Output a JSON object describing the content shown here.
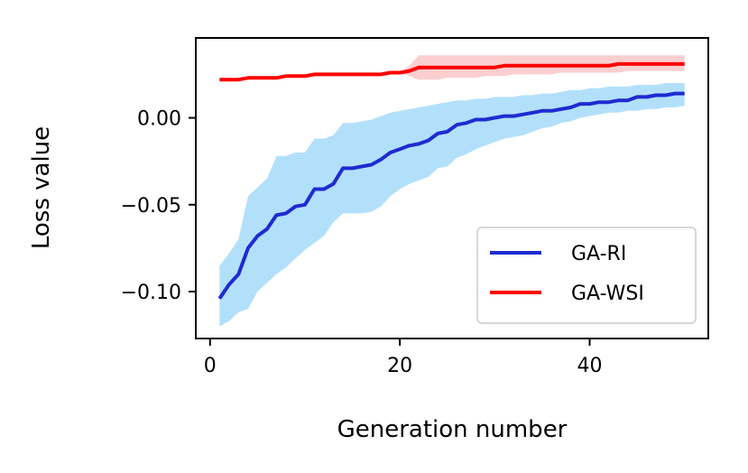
{
  "chart_data": {
    "type": "line",
    "title": "",
    "xlabel": "Generation number",
    "ylabel": "Loss value",
    "xlim": [
      -1.5,
      52.5
    ],
    "ylim": [
      -0.127,
      0.046
    ],
    "xticks": [
      0,
      20,
      40
    ],
    "xtick_labels": [
      "0",
      "20",
      "40"
    ],
    "yticks": [
      -0.1,
      -0.05,
      0.0
    ],
    "ytick_labels": [
      "−0.10",
      "−0.05",
      "0.00"
    ],
    "grid": false,
    "legend_position": "lower-right",
    "x": [
      1,
      2,
      3,
      4,
      5,
      6,
      7,
      8,
      9,
      10,
      11,
      12,
      13,
      14,
      15,
      16,
      17,
      18,
      19,
      20,
      21,
      22,
      23,
      24,
      25,
      26,
      27,
      28,
      29,
      30,
      31,
      32,
      33,
      34,
      35,
      36,
      37,
      38,
      39,
      40,
      41,
      42,
      43,
      44,
      45,
      46,
      47,
      48,
      49,
      50
    ],
    "series": [
      {
        "name": "GA-RI",
        "color": "#1f2bd0",
        "band_color": "#b2e0fb",
        "values": [
          -0.104,
          -0.096,
          -0.09,
          -0.075,
          -0.068,
          -0.064,
          -0.056,
          -0.055,
          -0.051,
          -0.05,
          -0.041,
          -0.041,
          -0.038,
          -0.029,
          -0.029,
          -0.028,
          -0.027,
          -0.024,
          -0.02,
          -0.018,
          -0.016,
          -0.015,
          -0.013,
          -0.009,
          -0.008,
          -0.004,
          -0.003,
          -0.001,
          -0.001,
          0.0,
          0.001,
          0.001,
          0.002,
          0.003,
          0.004,
          0.004,
          0.005,
          0.006,
          0.008,
          0.008,
          0.009,
          0.009,
          0.01,
          0.01,
          0.012,
          0.012,
          0.013,
          0.013,
          0.014,
          0.014
        ],
        "lower": [
          -0.12,
          -0.117,
          -0.112,
          -0.11,
          -0.1,
          -0.095,
          -0.09,
          -0.086,
          -0.081,
          -0.076,
          -0.072,
          -0.068,
          -0.06,
          -0.055,
          -0.055,
          -0.055,
          -0.054,
          -0.051,
          -0.045,
          -0.041,
          -0.038,
          -0.036,
          -0.034,
          -0.029,
          -0.028,
          -0.023,
          -0.021,
          -0.018,
          -0.016,
          -0.014,
          -0.012,
          -0.011,
          -0.01,
          -0.008,
          -0.006,
          -0.005,
          -0.003,
          -0.002,
          0.0,
          0.001,
          0.002,
          0.003,
          0.003,
          0.004,
          0.004,
          0.005,
          0.005,
          0.006,
          0.006,
          0.007
        ],
        "upper": [
          -0.085,
          -0.078,
          -0.07,
          -0.045,
          -0.04,
          -0.035,
          -0.022,
          -0.022,
          -0.02,
          -0.02,
          -0.012,
          -0.012,
          -0.01,
          -0.003,
          -0.003,
          -0.002,
          -0.001,
          0.001,
          0.003,
          0.004,
          0.005,
          0.006,
          0.007,
          0.008,
          0.009,
          0.01,
          0.01,
          0.011,
          0.011,
          0.012,
          0.012,
          0.012,
          0.013,
          0.013,
          0.014,
          0.014,
          0.015,
          0.016,
          0.016,
          0.017,
          0.017,
          0.018,
          0.018,
          0.018,
          0.019,
          0.019,
          0.019,
          0.02,
          0.02,
          0.02
        ]
      },
      {
        "name": "GA-WSI",
        "color": "#ff0000",
        "band_color": "#fbcfcf",
        "values": [
          0.022,
          0.022,
          0.022,
          0.023,
          0.023,
          0.023,
          0.023,
          0.024,
          0.024,
          0.024,
          0.025,
          0.025,
          0.025,
          0.025,
          0.025,
          0.025,
          0.025,
          0.025,
          0.026,
          0.026,
          0.027,
          0.029,
          0.029,
          0.029,
          0.029,
          0.029,
          0.029,
          0.029,
          0.029,
          0.029,
          0.03,
          0.03,
          0.03,
          0.03,
          0.03,
          0.03,
          0.03,
          0.03,
          0.03,
          0.03,
          0.03,
          0.03,
          0.031,
          0.031,
          0.031,
          0.031,
          0.031,
          0.031,
          0.031,
          0.031
        ],
        "lower": [
          0.022,
          0.022,
          0.022,
          0.023,
          0.023,
          0.023,
          0.023,
          0.024,
          0.024,
          0.024,
          0.025,
          0.025,
          0.025,
          0.025,
          0.025,
          0.025,
          0.025,
          0.025,
          0.026,
          0.026,
          0.024,
          0.022,
          0.022,
          0.022,
          0.023,
          0.023,
          0.023,
          0.023,
          0.024,
          0.024,
          0.024,
          0.025,
          0.025,
          0.025,
          0.025,
          0.025,
          0.026,
          0.026,
          0.026,
          0.026,
          0.026,
          0.026,
          0.026,
          0.027,
          0.027,
          0.027,
          0.027,
          0.027,
          0.027,
          0.027
        ],
        "upper": [
          0.022,
          0.022,
          0.022,
          0.023,
          0.023,
          0.023,
          0.023,
          0.024,
          0.024,
          0.024,
          0.025,
          0.025,
          0.025,
          0.025,
          0.025,
          0.025,
          0.025,
          0.025,
          0.026,
          0.026,
          0.03,
          0.036,
          0.036,
          0.036,
          0.036,
          0.036,
          0.036,
          0.036,
          0.036,
          0.036,
          0.036,
          0.036,
          0.036,
          0.036,
          0.036,
          0.036,
          0.036,
          0.036,
          0.036,
          0.036,
          0.036,
          0.036,
          0.036,
          0.036,
          0.036,
          0.036,
          0.036,
          0.036,
          0.036,
          0.036
        ]
      }
    ]
  }
}
